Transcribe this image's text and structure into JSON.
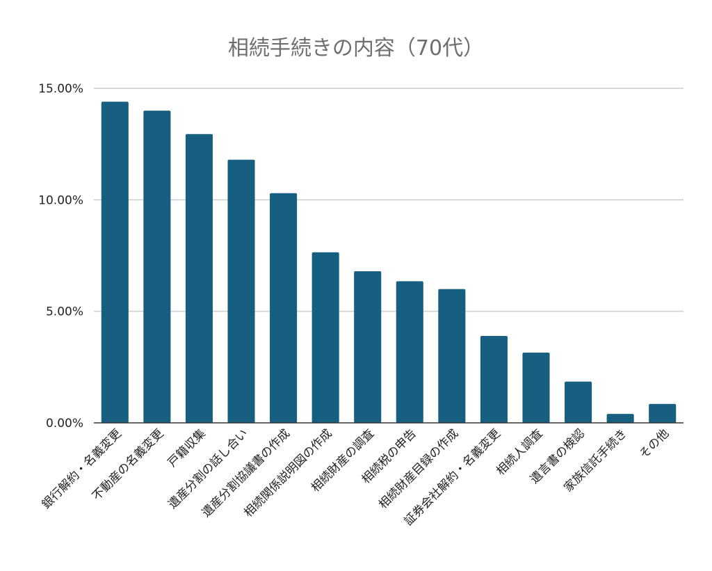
{
  "chart_data": {
    "type": "bar",
    "title": "相続手続きの内容（70代）",
    "categories": [
      "銀行解約・名義変更",
      "不動産の名義変更",
      "戸籍収集",
      "遺産分割の話し合い",
      "遺産分割協議書の作成",
      "相続関係説明図の作成",
      "相続財産の調査",
      "相続税の申告",
      "相続財産目録の作成",
      "証券会社解約・名義変更",
      "相続人調査",
      "遺言書の検認",
      "家族信託手続き",
      "その他"
    ],
    "values": [
      14.4,
      14.0,
      12.95,
      11.8,
      10.3,
      7.65,
      6.8,
      6.35,
      6.0,
      3.9,
      3.15,
      1.85,
      0.4,
      0.85
    ],
    "ylim": [
      0,
      15
    ],
    "yticks": [
      "0.00%",
      "5.00%",
      "10.00%",
      "15.00%"
    ],
    "ytick_values": [
      0,
      5,
      10,
      15
    ],
    "grid": true,
    "bar_color": "#175f80",
    "grid_color": "#cccccc",
    "axis_color": "#333333"
  }
}
